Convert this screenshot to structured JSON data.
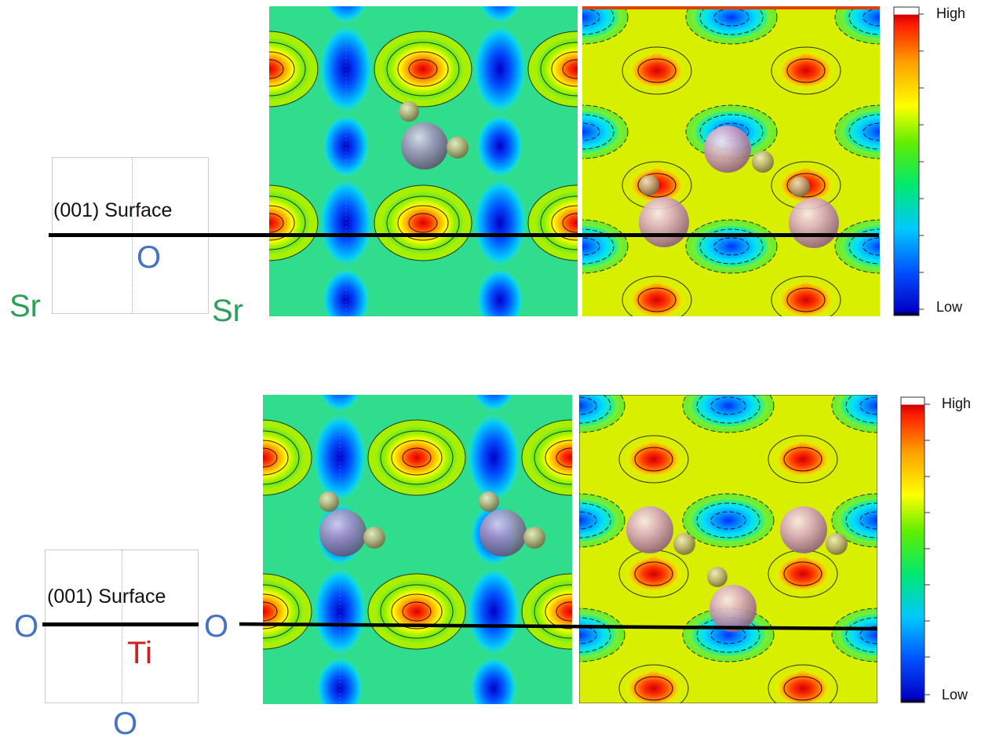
{
  "colors": {
    "oxygen_label": "#4472c4",
    "strontium_label": "#2ca05a",
    "titanium_label": "#d01f1f",
    "colormap": [
      "#0000c8",
      "#0050ff",
      "#00c8ff",
      "#00e870",
      "#c8f000",
      "#ffff00",
      "#ffa000",
      "#ff3000",
      "#d80000"
    ]
  },
  "icons": [
    "large-pink-atom-icon",
    "small-olive-atom-icon"
  ],
  "top": {
    "surface_label": "(001) Surface",
    "atoms": {
      "center": "O",
      "corner_left": "Sr",
      "corner_right": "Sr"
    },
    "colorbar": {
      "high": "High",
      "low": "Low"
    }
  },
  "bottom": {
    "surface_label": "(001) Surface",
    "atoms": {
      "left": "O",
      "right": "O",
      "center": "Ti",
      "bottom": "O"
    },
    "colorbar": {
      "high": "High",
      "low": "Low"
    }
  }
}
